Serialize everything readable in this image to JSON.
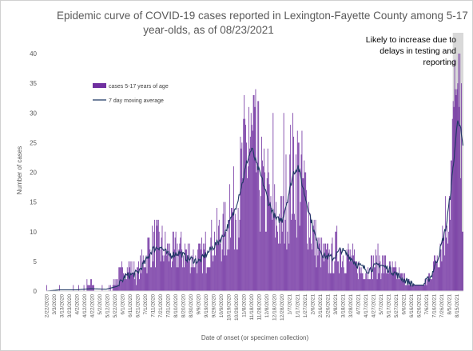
{
  "chart_data": {
    "type": "bar",
    "title": "Epidemic curve of COVID-19 cases reported in Lexington-Fayette County among 5-17 year-olds, as of 08/23/2021",
    "title_lines": [
      "Epidemic curve of COVID-19 cases reported in Lexington-Fayette County among 5-17",
      "year-olds, as of 08/23/2021"
    ],
    "xlabel": "Date of onset (or specimen collection)",
    "ylabel": "Number of cases",
    "ylim": [
      0,
      40
    ],
    "yticks": [
      0,
      5,
      10,
      15,
      20,
      25,
      30,
      35,
      40
    ],
    "grid": false,
    "legend_placement": "upper-left",
    "series": [
      {
        "name": "cases 5-17 years of age",
        "kind": "bar",
        "color": "#7030a0",
        "anchors": [
          [
            "2020-02-22",
            0
          ],
          [
            "2020-03-05",
            0
          ],
          [
            "2020-03-10",
            1
          ],
          [
            "2020-03-20",
            0
          ],
          [
            "2020-03-28",
            1
          ],
          [
            "2020-04-05",
            0
          ],
          [
            "2020-04-15",
            1
          ],
          [
            "2020-04-20",
            2
          ],
          [
            "2020-04-28",
            0
          ],
          [
            "2020-05-05",
            1
          ],
          [
            "2020-05-13",
            0
          ],
          [
            "2020-05-20",
            1
          ],
          [
            "2020-05-30",
            3
          ],
          [
            "2020-06-10",
            4
          ],
          [
            "2020-06-20",
            3
          ],
          [
            "2020-06-30",
            5
          ],
          [
            "2020-07-05",
            7
          ],
          [
            "2020-07-15",
            8
          ],
          [
            "2020-07-25",
            7
          ],
          [
            "2020-08-05",
            6
          ],
          [
            "2020-08-15",
            7
          ],
          [
            "2020-08-25",
            6
          ],
          [
            "2020-09-05",
            5
          ],
          [
            "2020-09-15",
            6
          ],
          [
            "2020-09-25",
            8
          ],
          [
            "2020-10-05",
            9
          ],
          [
            "2020-10-15",
            10
          ],
          [
            "2020-10-25",
            13
          ],
          [
            "2020-11-01",
            16
          ],
          [
            "2020-11-08",
            21
          ],
          [
            "2020-11-15",
            24
          ],
          [
            "2020-11-22",
            22
          ],
          [
            "2020-11-28",
            20
          ],
          [
            "2020-12-05",
            15
          ],
          [
            "2020-12-12",
            13
          ],
          [
            "2020-12-19",
            12
          ],
          [
            "2020-12-26",
            11
          ],
          [
            "2021-01-01",
            15
          ],
          [
            "2021-01-08",
            19
          ],
          [
            "2021-01-15",
            20
          ],
          [
            "2021-01-22",
            18
          ],
          [
            "2021-01-29",
            15
          ],
          [
            "2021-02-05",
            10
          ],
          [
            "2021-02-12",
            7
          ],
          [
            "2021-02-19",
            6
          ],
          [
            "2021-03-01",
            5
          ],
          [
            "2021-03-10",
            7
          ],
          [
            "2021-03-20",
            6
          ],
          [
            "2021-03-30",
            5
          ],
          [
            "2021-04-05",
            4
          ],
          [
            "2021-04-15",
            3
          ],
          [
            "2021-04-25",
            4
          ],
          [
            "2021-05-05",
            5
          ],
          [
            "2021-05-15",
            4
          ],
          [
            "2021-05-25",
            3
          ],
          [
            "2021-06-05",
            2
          ],
          [
            "2021-06-15",
            1
          ],
          [
            "2021-06-25",
            1
          ],
          [
            "2021-07-01",
            1
          ],
          [
            "2021-07-08",
            2
          ],
          [
            "2021-07-15",
            4
          ],
          [
            "2021-07-22",
            7
          ],
          [
            "2021-07-29",
            10
          ],
          [
            "2021-08-03",
            14
          ],
          [
            "2021-08-08",
            20
          ],
          [
            "2021-08-12",
            27
          ],
          [
            "2021-08-16",
            30
          ],
          [
            "2021-08-19",
            26
          ],
          [
            "2021-08-22",
            20
          ],
          [
            "2021-08-23",
            17
          ]
        ],
        "spikes": [
          [
            "2020-11-20",
            33
          ],
          [
            "2020-11-14",
            31
          ],
          [
            "2020-11-10",
            28
          ],
          [
            "2020-12-16",
            30
          ],
          [
            "2020-12-30",
            30
          ],
          [
            "2021-01-12",
            26
          ],
          [
            "2021-01-18",
            25
          ],
          [
            "2021-08-16",
            35
          ],
          [
            "2021-08-14",
            33
          ],
          [
            "2021-08-11",
            31
          ],
          [
            "2020-10-20",
            18
          ],
          [
            "2020-12-09",
            24
          ]
        ]
      },
      {
        "name": "7 day moving average",
        "kind": "line",
        "color": "#1f3864",
        "anchors": [
          [
            "2020-02-22",
            0
          ],
          [
            "2020-03-10",
            0.2
          ],
          [
            "2020-04-01",
            0.2
          ],
          [
            "2020-04-20",
            0.4
          ],
          [
            "2020-05-10",
            0.3
          ],
          [
            "2020-05-25",
            0.8
          ],
          [
            "2020-06-05",
            2.5
          ],
          [
            "2020-06-20",
            3
          ],
          [
            "2020-07-01",
            5
          ],
          [
            "2020-07-10",
            7
          ],
          [
            "2020-07-20",
            7.5
          ],
          [
            "2020-08-01",
            6
          ],
          [
            "2020-08-15",
            6.5
          ],
          [
            "2020-08-25",
            5.5
          ],
          [
            "2020-09-10",
            5
          ],
          [
            "2020-09-25",
            7
          ],
          [
            "2020-10-10",
            9
          ],
          [
            "2020-10-25",
            13
          ],
          [
            "2020-11-05",
            18
          ],
          [
            "2020-11-12",
            22
          ],
          [
            "2020-11-18",
            24
          ],
          [
            "2020-11-25",
            21
          ],
          [
            "2020-12-01",
            19
          ],
          [
            "2020-12-10",
            15
          ],
          [
            "2020-12-20",
            12
          ],
          [
            "2020-12-28",
            12
          ],
          [
            "2021-01-05",
            16
          ],
          [
            "2021-01-12",
            20
          ],
          [
            "2021-01-18",
            21
          ],
          [
            "2021-01-25",
            17
          ],
          [
            "2021-02-02",
            13
          ],
          [
            "2021-02-12",
            8
          ],
          [
            "2021-02-20",
            6
          ],
          [
            "2021-03-05",
            5.5
          ],
          [
            "2021-03-15",
            7
          ],
          [
            "2021-03-25",
            6
          ],
          [
            "2021-04-05",
            4.5
          ],
          [
            "2021-04-20",
            3.5
          ],
          [
            "2021-05-05",
            4.5
          ],
          [
            "2021-05-20",
            3.5
          ],
          [
            "2021-06-05",
            2
          ],
          [
            "2021-06-20",
            1
          ],
          [
            "2021-07-01",
            1
          ],
          [
            "2021-07-12",
            2.5
          ],
          [
            "2021-07-22",
            6
          ],
          [
            "2021-08-01",
            11
          ],
          [
            "2021-08-08",
            18
          ],
          [
            "2021-08-13",
            25
          ],
          [
            "2021-08-16",
            29
          ],
          [
            "2021-08-19",
            28
          ],
          [
            "2021-08-23",
            24
          ]
        ]
      }
    ],
    "x_tick_labels": [
      "2/22/2020",
      "3/3/2020",
      "3/13/2020",
      "3/23/2020",
      "4/2/2020",
      "4/12/2020",
      "4/22/2020",
      "5/2/2020",
      "5/12/2020",
      "5/22/2020",
      "6/1/2020",
      "6/11/2020",
      "6/21/2020",
      "7/1/2020",
      "7/11/2020",
      "7/21/2020",
      "7/31/2020",
      "8/10/2020",
      "8/20/2020",
      "8/30/2020",
      "9/9/2020",
      "9/19/2020",
      "9/29/2020",
      "10/9/2020",
      "10/19/2020",
      "10/29/2020",
      "11/8/2020",
      "11/18/2020",
      "11/28/2020",
      "12/8/2020",
      "12/18/2020",
      "12/28/2020",
      "1/7/2021",
      "1/17/2021",
      "1/27/2021",
      "2/6/2021",
      "2/16/2021",
      "2/26/2021",
      "3/8/2021",
      "3/18/2021",
      "3/28/2021",
      "4/7/2021",
      "4/17/2021",
      "4/27/2021",
      "5/7/2021",
      "5/17/2021",
      "5/27/2021",
      "6/6/2021",
      "6/16/2021",
      "6/26/2021",
      "7/6/2021",
      "7/16/2021",
      "7/26/2021",
      "8/5/2021",
      "8/15/2021"
    ],
    "x_range": [
      "2020-02-22",
      "2021-08-23"
    ],
    "highlight": {
      "from": "2021-08-10",
      "to": "2021-08-23",
      "color": "#d9d9d9"
    },
    "annotation": {
      "lines": [
        "Likely to increase due to",
        "delays in testing and",
        "reporting"
      ]
    }
  }
}
